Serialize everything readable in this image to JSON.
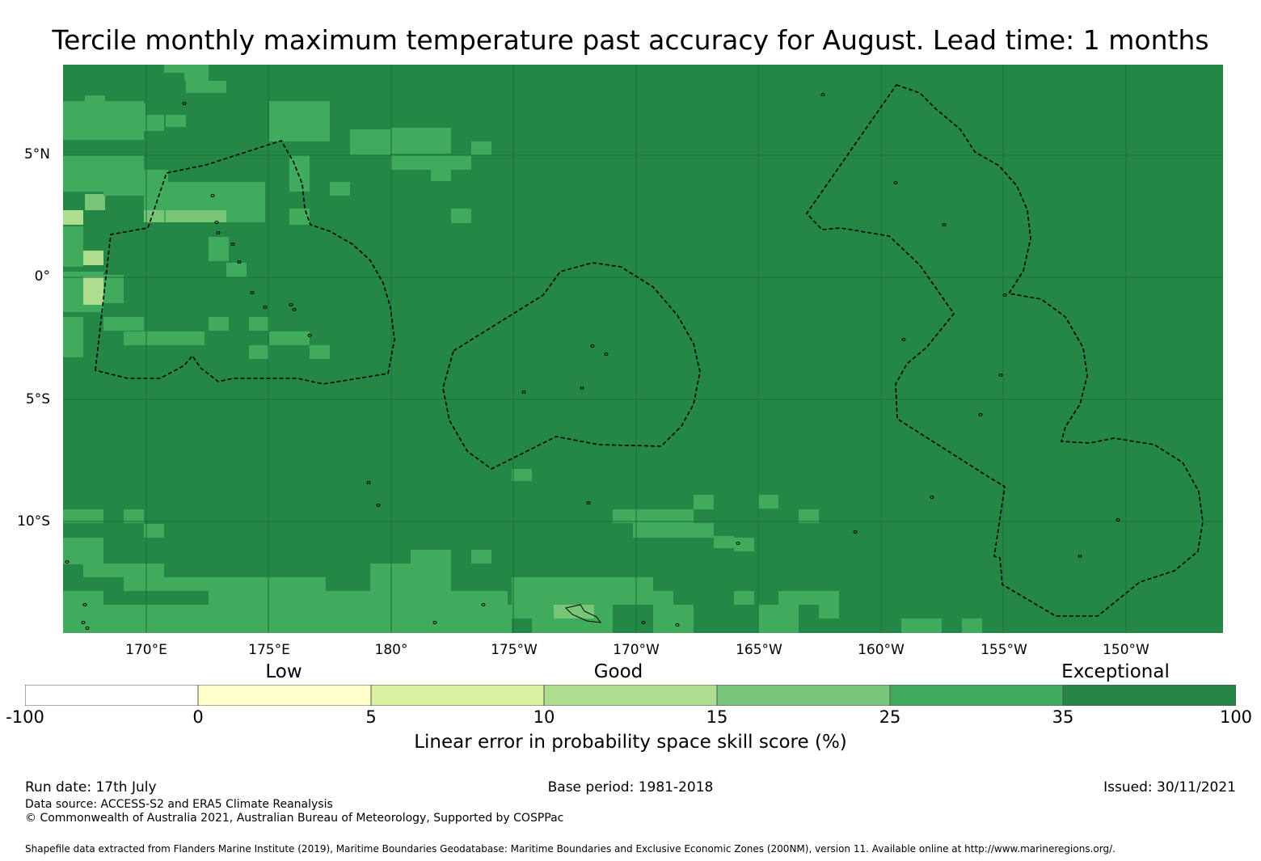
{
  "title": "Tercile monthly maximum temperature past accuracy for August. Lead time: 1 months",
  "map": {
    "lat_labels": [
      "5°N",
      "0°",
      "5°S",
      "10°S"
    ],
    "lon_labels": [
      "170°E",
      "175°E",
      "180°",
      "175°W",
      "170°W",
      "165°W",
      "160°W",
      "155°W",
      "150°W"
    ],
    "lon_range": [
      166.7,
      214.2
    ],
    "lat_range": [
      -14.6,
      8.7
    ],
    "background_color": "#248746",
    "cell_colors": {
      "25_35": "#40aa5d",
      "15_25": "#79c578",
      "10_15": "#addd8e"
    }
  },
  "legend": {
    "categories": [
      "Low",
      "Good",
      "Exceptional"
    ],
    "ticks": [
      "-100",
      "0",
      "5",
      "10",
      "15",
      "25",
      "35",
      "100"
    ],
    "colors": [
      "#ffffff",
      "#ffffcc",
      "#d9f0a3",
      "#addd8e",
      "#78c679",
      "#41ab5d",
      "#238443"
    ],
    "label": "Linear error in probability space skill score (%)"
  },
  "footer": {
    "run_date": "Run date: 17th July",
    "base_period": "Base period: 1981-2018",
    "issued": "Issued: 30/11/2021",
    "data_source": "Data source: ACCESS-S2 and ERA5 Climate Reanalysis",
    "copyright": "© Commonwealth of Australia 2021, Australian Bureau of Meteorology, Supported by COSPPac",
    "shapefile": "Shapefile data extracted from Flanders Marine Institute (2019), Maritime Boundaries Geodatabase: Maritime Boundaries and Exclusive Economic Zones (200NM), version 11. Available online at http://www.marineregions.org/."
  }
}
